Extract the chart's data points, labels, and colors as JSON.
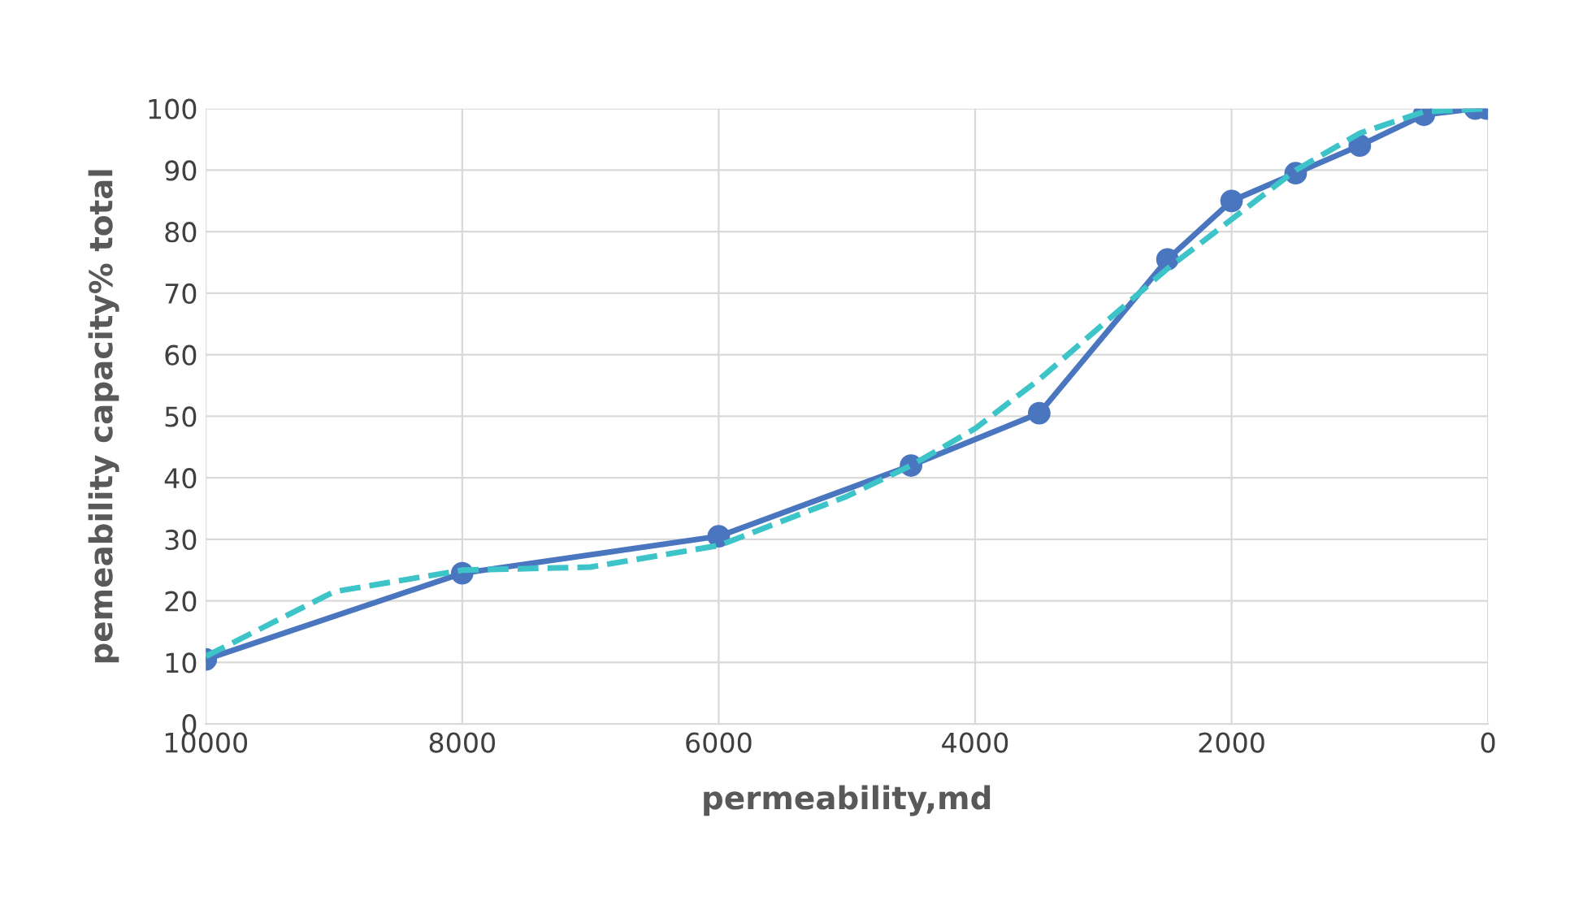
{
  "chart_data": {
    "type": "line",
    "xlabel": "permeability,md",
    "ylabel": "pemeability capacity% total",
    "xlim": [
      10000,
      0
    ],
    "xticks": [
      10000,
      8000,
      6000,
      4000,
      2000,
      0
    ],
    "ylim": [
      0,
      100
    ],
    "yticks": [
      0,
      10,
      20,
      30,
      40,
      50,
      60,
      70,
      80,
      90,
      100
    ],
    "grid": true,
    "series": [
      {
        "color": "#4a76c0",
        "marker": "circle",
        "line_style": "solid",
        "x": [
          10000,
          8000,
          6000,
          4500,
          3500,
          2500,
          2000,
          1500,
          1000,
          500,
          100,
          10
        ],
        "values": [
          10.5,
          24.5,
          30.5,
          42,
          50.5,
          75.5,
          85,
          89.5,
          94,
          99,
          100,
          100
        ]
      },
      {
        "color": "#3cc4c8",
        "marker": "none",
        "line_style": "dashed",
        "x": [
          10000,
          9000,
          8000,
          7000,
          6000,
          5000,
          4500,
          4000,
          3500,
          3000,
          2500,
          2000,
          1500,
          1000,
          500,
          0
        ],
        "values": [
          11,
          21.5,
          25,
          25.5,
          29,
          37,
          42,
          48,
          56,
          65,
          74,
          82,
          90,
          96,
          99.5,
          100
        ]
      }
    ]
  }
}
